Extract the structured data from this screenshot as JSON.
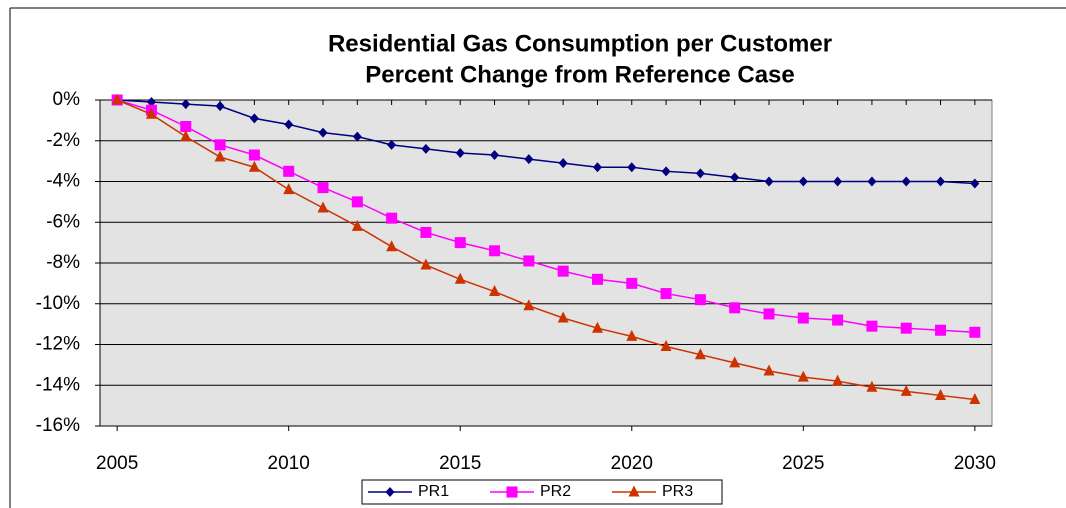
{
  "chart_data": {
    "type": "line",
    "title": [
      "Residential Gas Consumption per Customer",
      "Percent Change from Reference Case"
    ],
    "x": [
      2005,
      2006,
      2007,
      2008,
      2009,
      2010,
      2011,
      2012,
      2013,
      2014,
      2015,
      2016,
      2017,
      2018,
      2019,
      2020,
      2021,
      2022,
      2023,
      2024,
      2025,
      2026,
      2027,
      2028,
      2029,
      2030
    ],
    "series": [
      {
        "name": "PR1",
        "color": "#000080",
        "marker": "diamond",
        "values": [
          0,
          -0.1,
          -0.2,
          -0.3,
          -0.9,
          -1.2,
          -1.6,
          -1.8,
          -2.2,
          -2.4,
          -2.6,
          -2.7,
          -2.9,
          -3.1,
          -3.3,
          -3.3,
          -3.5,
          -3.6,
          -3.8,
          -4.0,
          -4.0,
          -4.0,
          -4.0,
          -4.0,
          -4.0,
          -4.1
        ]
      },
      {
        "name": "PR2",
        "color": "#ff00ff",
        "marker": "square",
        "values": [
          0,
          -0.5,
          -1.3,
          -2.2,
          -2.7,
          -3.5,
          -4.3,
          -5.0,
          -5.8,
          -6.5,
          -7.0,
          -7.4,
          -7.9,
          -8.4,
          -8.8,
          -9.0,
          -9.5,
          -9.8,
          -10.2,
          -10.5,
          -10.7,
          -10.8,
          -11.1,
          -11.2,
          -11.3,
          -11.4
        ]
      },
      {
        "name": "PR3",
        "color": "#cc3300",
        "marker": "triangle",
        "values": [
          0,
          -0.7,
          -1.8,
          -2.8,
          -3.3,
          -4.4,
          -5.3,
          -6.2,
          -7.2,
          -8.1,
          -8.8,
          -9.4,
          -10.1,
          -10.7,
          -11.2,
          -11.6,
          -12.1,
          -12.5,
          -12.9,
          -13.3,
          -13.6,
          -13.8,
          -14.1,
          -14.3,
          -14.5,
          -14.7
        ]
      }
    ],
    "xlim": [
      2004.5,
      2030.5
    ],
    "xticks": [
      2005,
      2010,
      2015,
      2020,
      2025,
      2030
    ],
    "ylim": [
      -16,
      0
    ],
    "yticks": [
      {
        "value": 0,
        "label": "0%"
      },
      {
        "value": -2,
        "label": "-2%"
      },
      {
        "value": -4,
        "label": "-4%"
      },
      {
        "value": -6,
        "label": "-6%"
      },
      {
        "value": -8,
        "label": "-8%"
      },
      {
        "value": -10,
        "label": "-10%"
      },
      {
        "value": -12,
        "label": "-12%"
      },
      {
        "value": -14,
        "label": "-14%"
      },
      {
        "value": -16,
        "label": "-16%"
      }
    ],
    "grid": true,
    "legend": "bottom"
  }
}
